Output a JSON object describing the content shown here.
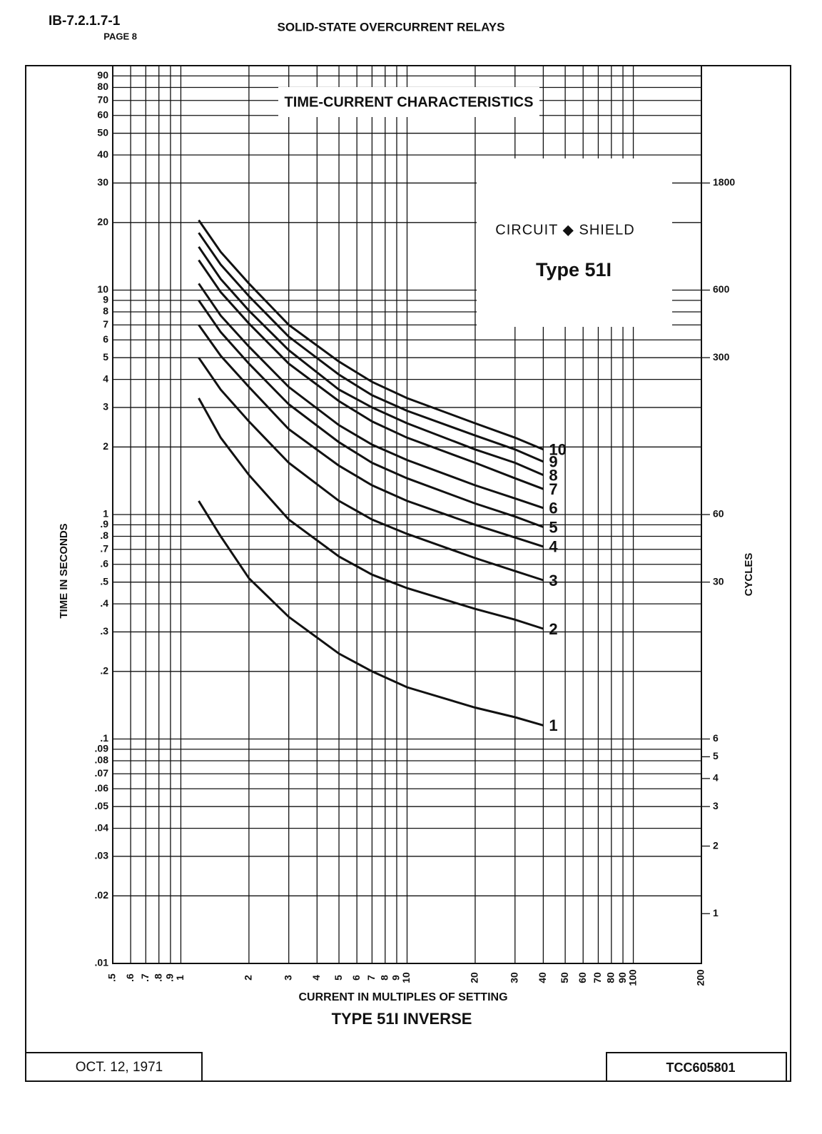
{
  "header": {
    "doc_id": "IB-7.2.1.7-1",
    "page": "PAGE 8",
    "title": "SOLID-STATE OVERCURRENT RELAYS"
  },
  "chart_data": {
    "type": "line",
    "title": "TIME-CURRENT  CHARACTERISTICS",
    "brand": "CIRCUIT ◆ SHIELD",
    "model": "Type 51I",
    "subtitle": "TYPE 51I INVERSE",
    "x_label": "CURRENT IN MULTIPLES OF SETTING",
    "y_label": "TIME IN SECONDS",
    "y2_label": "CYCLES",
    "log_x": true,
    "log_y": true,
    "grid": true,
    "xlim": [
      0.5,
      200
    ],
    "ylim": [
      0.01,
      100
    ],
    "y2lim": [
      0.6,
      6000
    ],
    "xticks": [
      {
        "value": 0.5,
        "label": ".5"
      },
      {
        "value": 0.6,
        "label": ".6"
      },
      {
        "value": 0.7,
        "label": ".7"
      },
      {
        "value": 0.8,
        "label": ".8"
      },
      {
        "value": 0.9,
        "label": ".9"
      },
      1,
      2,
      3,
      4,
      5,
      6,
      7,
      8,
      9,
      10,
      20,
      30,
      40,
      50,
      60,
      70,
      80,
      90,
      100,
      200
    ],
    "yticks": [
      {
        "value": 0.01,
        "label": ".01"
      },
      {
        "value": 0.02,
        "label": ".02"
      },
      {
        "value": 0.03,
        "label": ".03"
      },
      {
        "value": 0.04,
        "label": ".04"
      },
      {
        "value": 0.05,
        "label": ".05"
      },
      {
        "value": 0.06,
        "label": ".06"
      },
      {
        "value": 0.07,
        "label": ".07"
      },
      {
        "value": 0.08,
        "label": ".08"
      },
      {
        "value": 0.09,
        "label": ".09"
      },
      {
        "value": 0.1,
        "label": ".1"
      },
      {
        "value": 0.2,
        "label": ".2"
      },
      {
        "value": 0.3,
        "label": ".3"
      },
      {
        "value": 0.4,
        "label": ".4"
      },
      {
        "value": 0.5,
        "label": ".5"
      },
      {
        "value": 0.6,
        "label": ".6"
      },
      {
        "value": 0.7,
        "label": ".7"
      },
      {
        "value": 0.8,
        "label": ".8"
      },
      {
        "value": 0.9,
        "label": ".9"
      },
      1,
      2,
      3,
      4,
      5,
      6,
      7,
      8,
      9,
      10,
      20,
      30,
      40,
      50,
      60,
      70,
      80,
      90
    ],
    "y2ticks": [
      1,
      2,
      3,
      4,
      5,
      6,
      30,
      60,
      300,
      600,
      1800
    ],
    "x": [
      1.2,
      1.5,
      2,
      3,
      5,
      7,
      10,
      20,
      30,
      40
    ],
    "series": [
      {
        "name": "1",
        "color": "#111111",
        "values": [
          1.15,
          0.8,
          0.52,
          0.35,
          0.24,
          0.2,
          0.17,
          0.138,
          0.125,
          0.115
        ]
      },
      {
        "name": "2",
        "color": "#111111",
        "values": [
          3.3,
          2.2,
          1.5,
          0.95,
          0.65,
          0.54,
          0.47,
          0.38,
          0.34,
          0.31
        ]
      },
      {
        "name": "3",
        "color": "#111111",
        "values": [
          5.0,
          3.6,
          2.6,
          1.7,
          1.15,
          0.95,
          0.82,
          0.64,
          0.56,
          0.51
        ]
      },
      {
        "name": "4",
        "color": "#111111",
        "values": [
          7,
          5.1,
          3.7,
          2.4,
          1.65,
          1.35,
          1.15,
          0.9,
          0.79,
          0.72
        ]
      },
      {
        "name": "5",
        "color": "#111111",
        "values": [
          9,
          6.5,
          4.7,
          3.1,
          2.1,
          1.7,
          1.45,
          1.12,
          0.98,
          0.88
        ]
      },
      {
        "name": "6",
        "color": "#111111",
        "values": [
          10.7,
          7.7,
          5.6,
          3.7,
          2.5,
          2.05,
          1.75,
          1.35,
          1.18,
          1.07
        ]
      },
      {
        "name": "7",
        "color": "#111111",
        "values": [
          13.6,
          9.8,
          7.1,
          4.7,
          3.2,
          2.6,
          2.2,
          1.7,
          1.45,
          1.3
        ]
      },
      {
        "name": "8",
        "color": "#111111",
        "values": [
          15.6,
          11.2,
          8.1,
          5.4,
          3.6,
          3.0,
          2.55,
          1.95,
          1.7,
          1.5
        ]
      },
      {
        "name": "9",
        "color": "#111111",
        "values": [
          18,
          13,
          9.4,
          6.2,
          4.2,
          3.4,
          2.9,
          2.25,
          1.95,
          1.72
        ]
      },
      {
        "name": "10",
        "color": "#111111",
        "values": [
          20.5,
          14.8,
          10.7,
          7.0,
          4.8,
          3.9,
          3.3,
          2.55,
          2.2,
          1.95
        ]
      }
    ]
  },
  "footer": {
    "date": "OCT. 12, 1971",
    "code": "TCC605801"
  }
}
